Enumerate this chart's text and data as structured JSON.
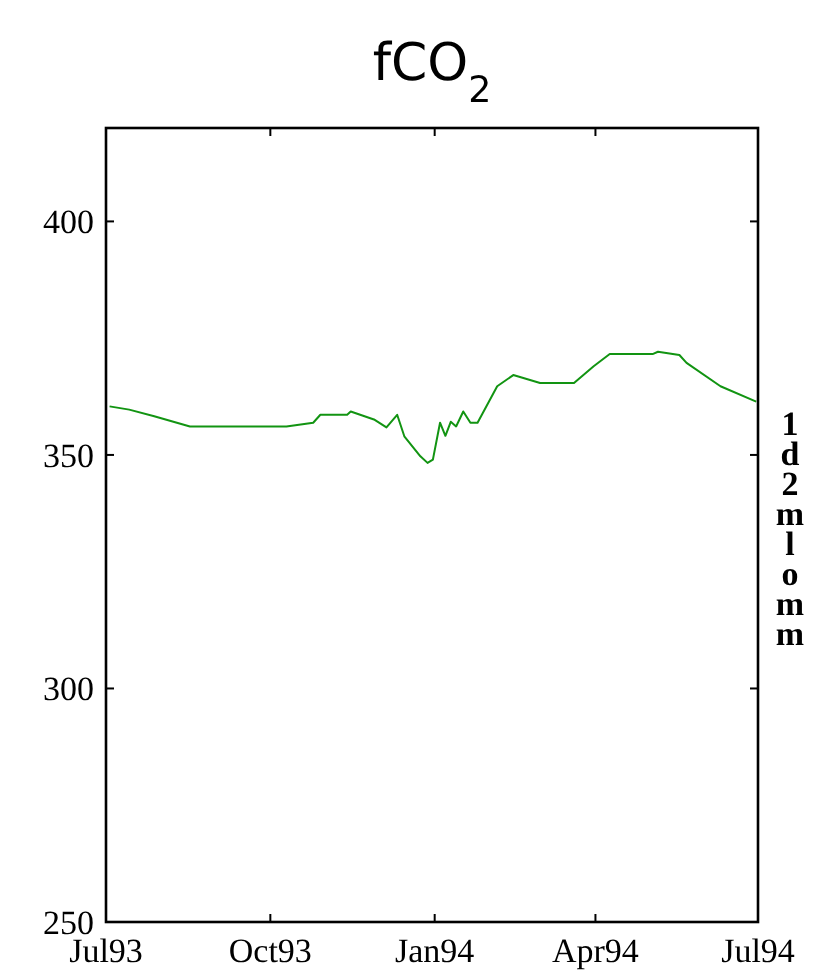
{
  "chart_data": {
    "type": "line",
    "title": "fCO$_{2}$",
    "y2label": "1d2mlomm",
    "x": [
      "1993-07-03",
      "1993-07-14",
      "1993-07-28",
      "1993-08-17",
      "1993-10-10",
      "1993-10-25",
      "1993-10-29",
      "1993-11-13",
      "1993-11-15",
      "1993-11-28",
      "1993-12-05",
      "1993-12-11",
      "1993-12-15",
      "1993-12-24",
      "1993-12-28",
      "1993-12-31",
      "1994-01-04",
      "1994-01-07",
      "1994-01-10",
      "1994-01-13",
      "1994-01-17",
      "1994-01-21",
      "1994-01-25",
      "1994-02-05",
      "1994-02-14",
      "1994-03-01",
      "1994-03-20",
      "1994-03-31",
      "1994-04-09",
      "1994-05-03",
      "1994-05-06",
      "1994-05-18",
      "1994-05-22",
      "1994-06-10",
      "1994-06-30"
    ],
    "series": [
      {
        "color": "#129412",
        "values": [
          360.4,
          359.7,
          358.3,
          356.1,
          356.1,
          356.9,
          358.6,
          358.6,
          359.3,
          357.6,
          355.9,
          358.6,
          354,
          349.7,
          348.3,
          349,
          356.9,
          354.1,
          357.1,
          356.1,
          359.3,
          356.9,
          356.9,
          364.7,
          367.1,
          365.4,
          365.4,
          369,
          371.6,
          371.6,
          372.1,
          371.4,
          369.7,
          364.7,
          361.4
        ]
      }
    ],
    "xlim": [
      "1993-07-01",
      "1994-07-01"
    ],
    "xticks": [
      {
        "value": "1993-07-01",
        "label": "Jul93"
      },
      {
        "value": "1993-10-01",
        "label": "Oct93"
      },
      {
        "value": "1994-01-01",
        "label": "Jan94"
      },
      {
        "value": "1994-04-01",
        "label": "Apr94"
      },
      {
        "value": "1994-07-01",
        "label": "Jul94"
      }
    ],
    "ylim": [
      250,
      420
    ],
    "yticks": [
      250,
      300,
      350,
      400
    ],
    "grid": false,
    "marker": "none",
    "line_style": "solid"
  }
}
